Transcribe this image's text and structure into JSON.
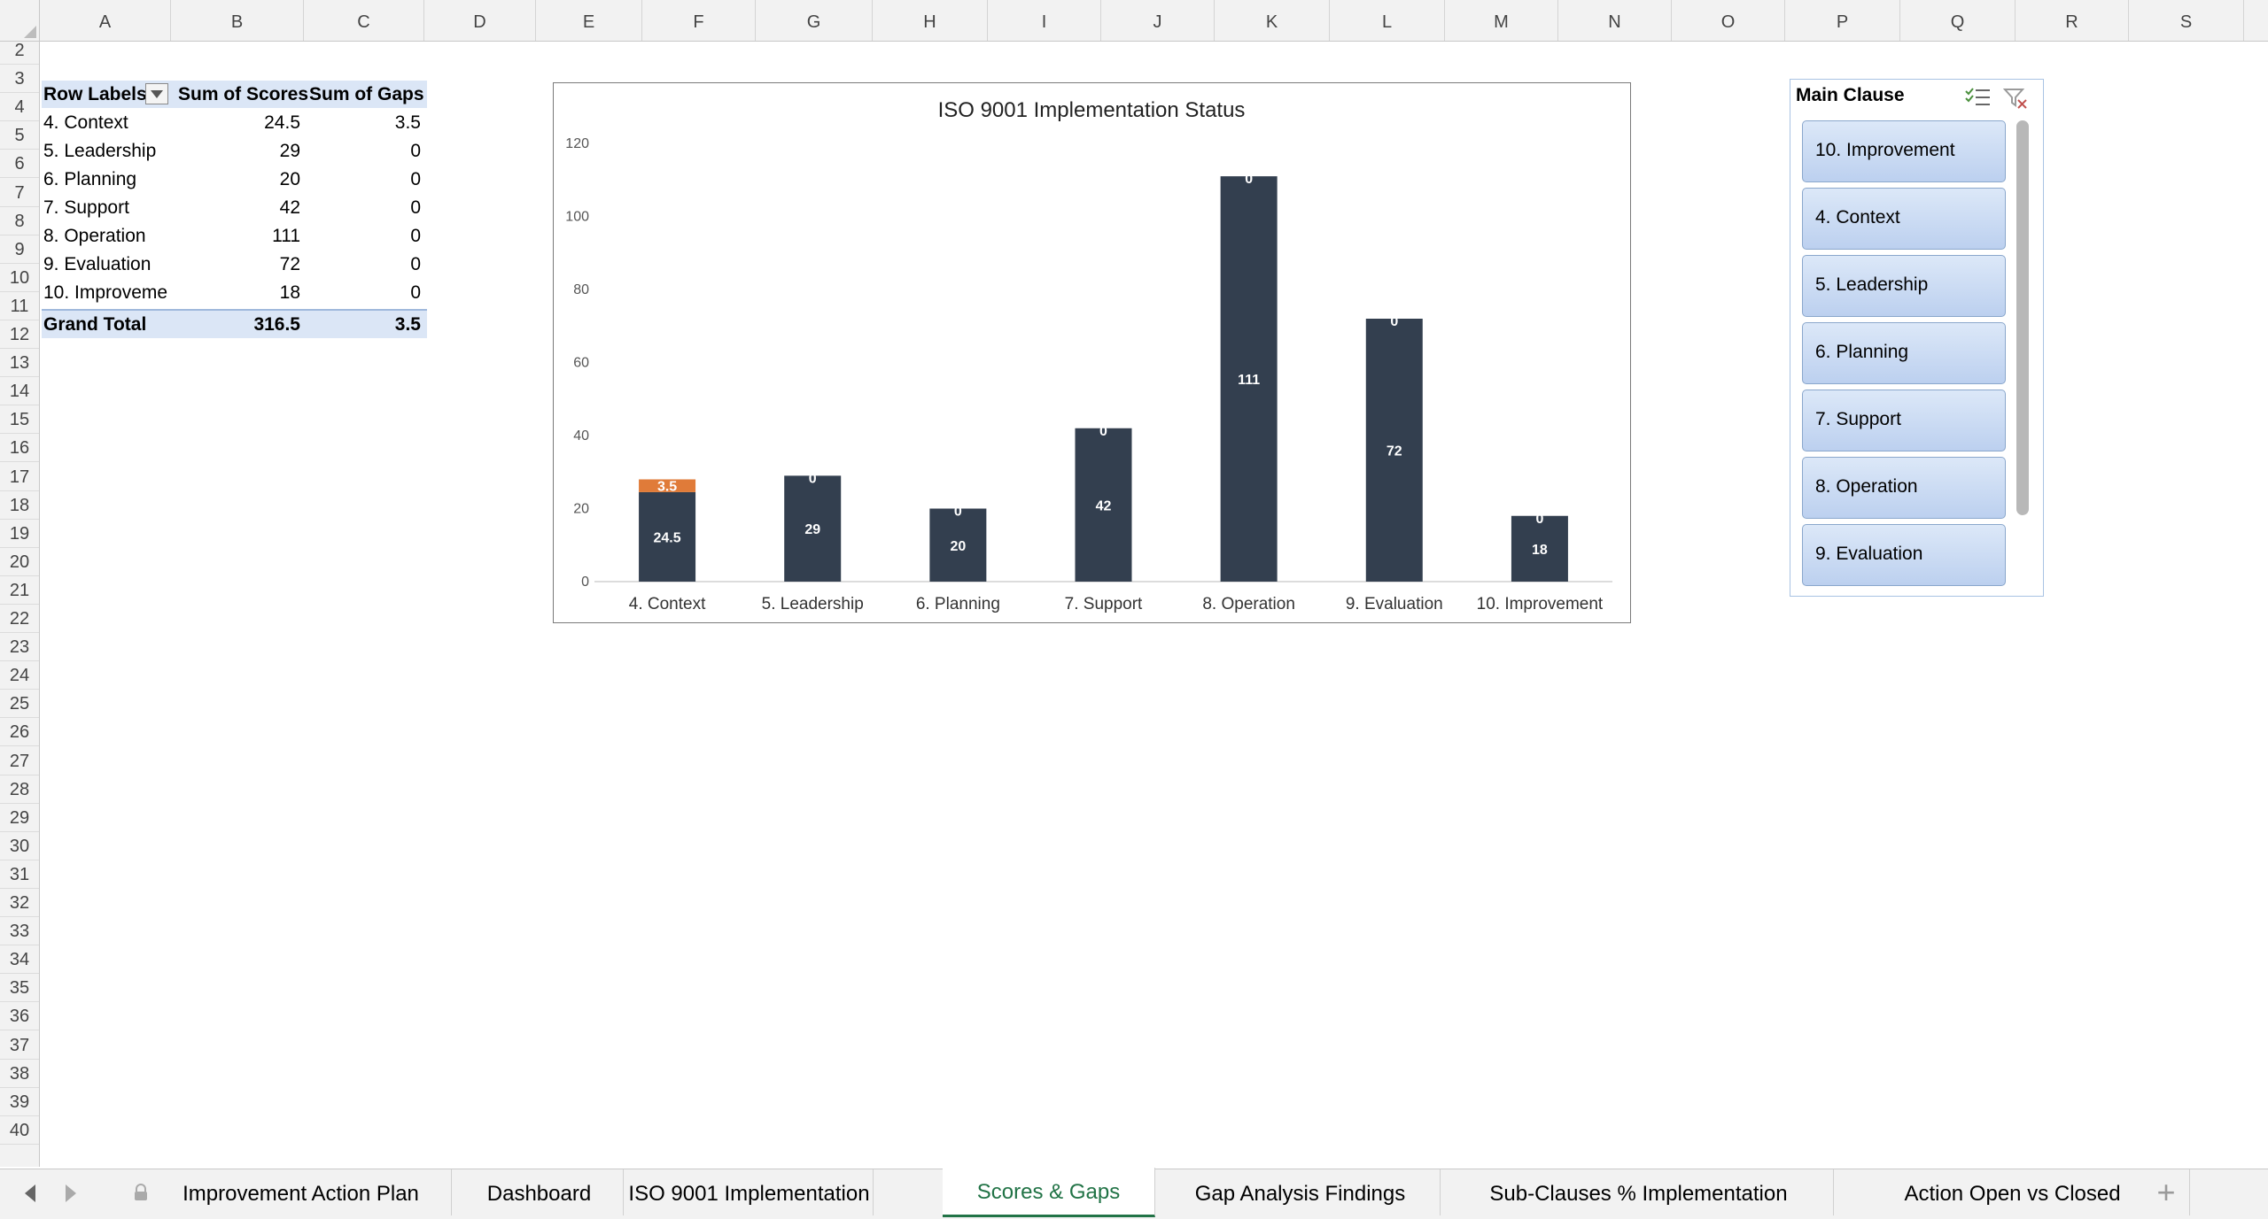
{
  "columns": [
    "A",
    "B",
    "C",
    "D",
    "E",
    "F",
    "G",
    "H",
    "I",
    "J",
    "K",
    "L",
    "M",
    "N",
    "O",
    "P",
    "Q",
    "R",
    "S"
  ],
  "rows": [
    2,
    3,
    4,
    5,
    6,
    7,
    8,
    9,
    10,
    11,
    12,
    13,
    14,
    15,
    16,
    17,
    18,
    19,
    20,
    21,
    22,
    23,
    24,
    25,
    26,
    27,
    28,
    29,
    30,
    31,
    32,
    33,
    34,
    35,
    36,
    37,
    38,
    39,
    40
  ],
  "pivot": {
    "headers": [
      "Row Labels",
      "Sum of Scores",
      "Sum of Gaps"
    ],
    "rows": [
      {
        "label": "4. Context",
        "scores": "24.5",
        "gaps": "3.5"
      },
      {
        "label": "5. Leadership",
        "scores": "29",
        "gaps": "0"
      },
      {
        "label": "6. Planning",
        "scores": "20",
        "gaps": "0"
      },
      {
        "label": "7. Support",
        "scores": "42",
        "gaps": "0"
      },
      {
        "label": "8. Operation",
        "scores": "111",
        "gaps": "0"
      },
      {
        "label": "9. Evaluation",
        "scores": "72",
        "gaps": "0"
      },
      {
        "label": "10. Improveme",
        "scores": "18",
        "gaps": "0"
      }
    ],
    "total": {
      "label": "Grand Total",
      "scores": "316.5",
      "gaps": "3.5"
    }
  },
  "chart_data": {
    "type": "bar",
    "stacked": true,
    "title": "ISO 9001 Implementation Status",
    "categories": [
      "4. Context",
      "5. Leadership",
      "6. Planning",
      "7. Support",
      "8. Operation",
      "9. Evaluation",
      "10. Improvement"
    ],
    "series": [
      {
        "values": [
          24.5,
          29,
          20,
          42,
          111,
          72,
          18
        ],
        "color": "#333f4f"
      },
      {
        "values": [
          3.5,
          0,
          0,
          0,
          0,
          0,
          0
        ],
        "color": "#e07b39"
      }
    ],
    "ylim": [
      0,
      120
    ],
    "yticks": [
      0,
      20,
      40,
      60,
      80,
      100,
      120
    ],
    "grid": false,
    "legend": "none"
  },
  "slicer": {
    "title": "Main Clause",
    "items": [
      "10. Improvement",
      "4. Context",
      "5. Leadership",
      "6. Planning",
      "7. Support",
      "8. Operation",
      "9. Evaluation"
    ],
    "icons": [
      "multi-select-icon",
      "clear-filter-icon"
    ]
  },
  "tabs": [
    {
      "label": "Improvement Action Plan",
      "locked": true
    },
    {
      "label": "Dashboard"
    },
    {
      "label": "ISO 9001 Implementation"
    },
    {
      "label": "Scores & Gaps",
      "active": true
    },
    {
      "label": "Gap Analysis Findings"
    },
    {
      "label": "Sub-Clauses % Implementation"
    },
    {
      "label": "Action Open vs Closed"
    }
  ],
  "colors": {
    "active_tab": "#217346",
    "bar_dark": "#333f4f",
    "bar_gap": "#e07b39",
    "pivot_header": "#dbe6f6"
  }
}
